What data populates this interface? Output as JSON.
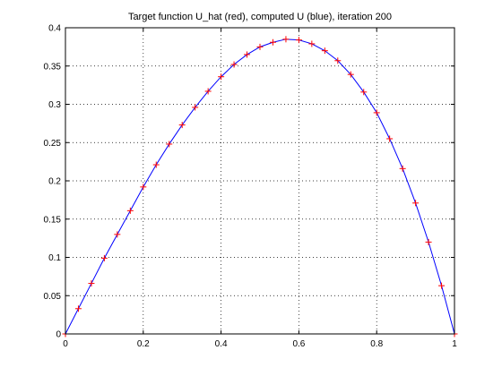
{
  "chart_data": {
    "type": "line",
    "title": "Target function U_hat (red), computed U (blue), iteration 200",
    "xlabel": "",
    "ylabel": "",
    "xlim": [
      0,
      1
    ],
    "ylim": [
      0,
      0.4
    ],
    "grid": true,
    "x_ticks": [
      "0",
      "0.2",
      "0.4",
      "0.6",
      "0.8",
      "1"
    ],
    "y_ticks": [
      "0",
      "0.05",
      "0.1",
      "0.15",
      "0.2",
      "0.25",
      "0.3",
      "0.35",
      "0.4"
    ],
    "series": [
      {
        "style": "line",
        "color": "#0000ff",
        "x": [
          0,
          0.0333,
          0.0667,
          0.1,
          0.1333,
          0.1667,
          0.2,
          0.2333,
          0.2667,
          0.3,
          0.3333,
          0.3667,
          0.4,
          0.4333,
          0.4667,
          0.5,
          0.5333,
          0.5667,
          0.6,
          0.6333,
          0.6667,
          0.7,
          0.7333,
          0.7667,
          0.8,
          0.8333,
          0.8667,
          0.9,
          0.9333,
          0.9667,
          1
        ],
        "y": [
          0,
          0.033,
          0.066,
          0.099,
          0.13,
          0.161,
          0.192,
          0.221,
          0.248,
          0.273,
          0.296,
          0.317,
          0.336,
          0.352,
          0.365,
          0.375,
          0.381,
          0.385,
          0.384,
          0.379,
          0.37,
          0.357,
          0.339,
          0.316,
          0.289,
          0.255,
          0.216,
          0.171,
          0.12,
          0.063,
          0
        ]
      },
      {
        "style": "markers",
        "marker": "+",
        "color": "#ff0000",
        "x": [
          0,
          0.0333,
          0.0667,
          0.1,
          0.1333,
          0.1667,
          0.2,
          0.2333,
          0.2667,
          0.3,
          0.3333,
          0.3667,
          0.4,
          0.4333,
          0.4667,
          0.5,
          0.5333,
          0.5667,
          0.6,
          0.6333,
          0.6667,
          0.7,
          0.7333,
          0.7667,
          0.8,
          0.8333,
          0.8667,
          0.9,
          0.9333,
          0.9667,
          1
        ],
        "y": [
          0,
          0.033,
          0.066,
          0.099,
          0.13,
          0.161,
          0.192,
          0.221,
          0.248,
          0.273,
          0.296,
          0.317,
          0.336,
          0.352,
          0.365,
          0.375,
          0.381,
          0.385,
          0.384,
          0.379,
          0.37,
          0.357,
          0.339,
          0.316,
          0.289,
          0.255,
          0.216,
          0.171,
          0.12,
          0.063,
          0
        ]
      }
    ]
  }
}
